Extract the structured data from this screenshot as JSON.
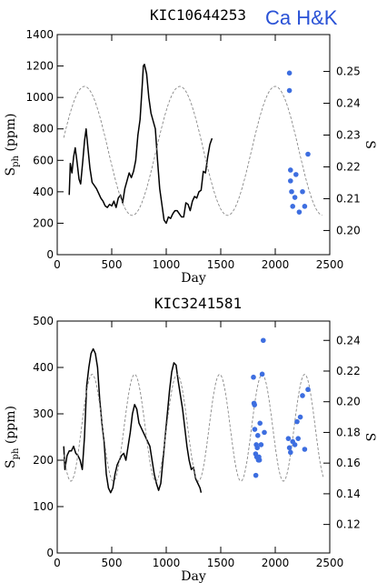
{
  "annotation": "Ca H&K",
  "colors": {
    "ca_points": "#3d6ee0",
    "sph_line": "#000000",
    "model_line": "#888888",
    "annotation": "#2a52d6"
  },
  "chart_data": [
    {
      "type": "line",
      "title": "KIC10644253",
      "xlabel": "Day",
      "ylabel": "S",
      "ylabel_sub": "ph",
      "ylabel_unit": " (ppm)",
      "y2label": "S",
      "xlim": [
        0,
        2500
      ],
      "ylim": [
        0,
        1400
      ],
      "y2lim": [
        0.1924,
        0.2616
      ],
      "xticks": [
        0,
        500,
        1000,
        1500,
        2000,
        2500
      ],
      "yticks": [
        0,
        200,
        400,
        600,
        800,
        1000,
        1200,
        1400
      ],
      "y2ticks": [
        "0.20",
        "0.21",
        "0.22",
        "0.23",
        "0.24",
        "0.25"
      ],
      "series": [
        {
          "kind": "line",
          "axis": "left",
          "x": [
            110,
            120,
            135,
            150,
            165,
            180,
            200,
            215,
            235,
            250,
            265,
            280,
            300,
            320,
            340,
            360,
            380,
            400,
            420,
            440,
            460,
            480,
            500,
            520,
            540,
            560,
            580,
            600,
            620,
            640,
            660,
            680,
            700,
            720,
            740,
            760,
            780,
            790,
            800,
            820,
            840,
            860,
            880,
            900,
            920,
            940,
            960,
            980,
            1000,
            1020,
            1040,
            1060,
            1080,
            1100,
            1120,
            1140,
            1160,
            1180,
            1200,
            1220,
            1240,
            1260,
            1280,
            1300,
            1320,
            1340,
            1360,
            1380,
            1400,
            1420
          ],
          "y": [
            380,
            580,
            520,
            620,
            680,
            600,
            480,
            450,
            600,
            720,
            800,
            690,
            550,
            460,
            440,
            420,
            390,
            360,
            340,
            310,
            300,
            320,
            310,
            340,
            300,
            360,
            380,
            330,
            420,
            470,
            520,
            490,
            530,
            600,
            760,
            860,
            1080,
            1200,
            1210,
            1150,
            1000,
            900,
            850,
            800,
            600,
            420,
            320,
            220,
            200,
            240,
            230,
            260,
            280,
            280,
            260,
            240,
            240,
            330,
            320,
            280,
            340,
            370,
            360,
            400,
            410,
            530,
            520,
            620,
            700,
            740
          ]
        },
        {
          "kind": "dashed",
          "axis": "left",
          "model": "sine",
          "amplitude": 410,
          "offset": 660,
          "period": 875,
          "peak_day": 250,
          "xrange": [
            60,
            2430
          ]
        },
        {
          "kind": "scatter",
          "axis": "right",
          "name": "Ca H&K",
          "x": [
            2130,
            2130,
            2140,
            2140,
            2150,
            2160,
            2180,
            2190,
            2220,
            2250,
            2270,
            2300
          ],
          "y": [
            0.2495,
            0.244,
            0.219,
            0.2156,
            0.2122,
            0.2076,
            0.2104,
            0.2176,
            0.2058,
            0.2122,
            0.2076,
            0.224
          ]
        }
      ]
    },
    {
      "type": "line",
      "title": "KIC3241581",
      "xlabel": "Day",
      "ylabel": "S",
      "ylabel_sub": "ph",
      "ylabel_unit": " (ppm)",
      "y2label": "S",
      "xlim": [
        0,
        2500
      ],
      "ylim": [
        0,
        500
      ],
      "y2lim": [
        0.1014,
        0.2526
      ],
      "xticks": [
        0,
        500,
        1000,
        1500,
        2000,
        2500
      ],
      "yticks": [
        0,
        100,
        200,
        300,
        400,
        500
      ],
      "y2ticks": [
        "0.12",
        "0.14",
        "0.16",
        "0.18",
        "0.20",
        "0.22",
        "0.24"
      ],
      "series": [
        {
          "kind": "line",
          "axis": "left",
          "x": [
            60,
            70,
            90,
            110,
            130,
            150,
            170,
            190,
            210,
            230,
            250,
            270,
            290,
            310,
            330,
            350,
            370,
            390,
            410,
            430,
            450,
            470,
            490,
            510,
            530,
            550,
            570,
            590,
            610,
            630,
            650,
            670,
            690,
            710,
            730,
            750,
            770,
            790,
            810,
            830,
            850,
            870,
            890,
            910,
            930,
            950,
            970,
            990,
            1010,
            1030,
            1050,
            1070,
            1090,
            1110,
            1130,
            1150,
            1170,
            1190,
            1210,
            1230,
            1250,
            1270,
            1290,
            1310,
            1320
          ],
          "y": [
            230,
            180,
            210,
            220,
            220,
            230,
            215,
            210,
            200,
            180,
            250,
            360,
            400,
            430,
            440,
            430,
            400,
            330,
            280,
            240,
            170,
            140,
            130,
            140,
            170,
            190,
            200,
            210,
            215,
            200,
            230,
            260,
            300,
            320,
            310,
            280,
            270,
            260,
            250,
            240,
            230,
            200,
            170,
            150,
            135,
            150,
            200,
            250,
            300,
            350,
            390,
            410,
            405,
            370,
            340,
            310,
            270,
            230,
            200,
            180,
            185,
            160,
            150,
            140,
            130
          ]
        },
        {
          "kind": "dashed",
          "axis": "left",
          "model": "sine",
          "amplitude": 115,
          "offset": 270,
          "period": 390,
          "peak_day": 320,
          "xrange": [
            60,
            2440
          ]
        },
        {
          "kind": "scatter",
          "axis": "right",
          "name": "Ca H&K",
          "x": [
            1800,
            1805,
            1810,
            1812,
            1820,
            1822,
            1826,
            1830,
            1835,
            1840,
            1845,
            1850,
            1855,
            1860,
            1870,
            1880,
            1890,
            1900,
            2120,
            2130,
            2140,
            2160,
            2180,
            2200,
            2210,
            2230,
            2250,
            2270,
            2300
          ],
          "y": [
            0.216,
            0.199,
            0.198,
            0.182,
            0.166,
            0.152,
            0.172,
            0.164,
            0.17,
            0.178,
            0.162,
            0.164,
            0.162,
            0.186,
            0.172,
            0.218,
            0.24,
            0.18,
            0.176,
            0.17,
            0.167,
            0.174,
            0.172,
            0.187,
            0.176,
            0.19,
            0.204,
            0.169,
            0.208
          ]
        }
      ]
    }
  ]
}
